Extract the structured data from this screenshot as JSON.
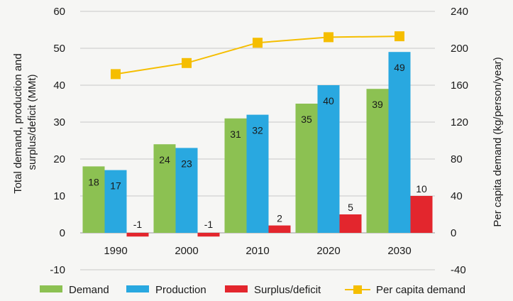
{
  "chart_data": {
    "type": "bar",
    "categories": [
      "1990",
      "2000",
      "2010",
      "2020",
      "2030"
    ],
    "series": [
      {
        "name": "Demand",
        "values": [
          18,
          24,
          31,
          35,
          39
        ],
        "color": "#8cc152",
        "kind": "bar",
        "axis": "left"
      },
      {
        "name": "Production",
        "values": [
          17,
          23,
          32,
          40,
          49
        ],
        "color": "#29a8e0",
        "kind": "bar",
        "axis": "left"
      },
      {
        "name": "Surplus/deficit",
        "values": [
          -1,
          -1,
          2,
          5,
          10
        ],
        "color": "#e3262d",
        "kind": "bar",
        "axis": "left"
      },
      {
        "name": "Per capita demand",
        "values": [
          172,
          184,
          206,
          212,
          213
        ],
        "color": "#f5be00",
        "kind": "line",
        "axis": "right"
      }
    ],
    "bar_labels": [
      [
        "18",
        "24",
        "31",
        "35",
        "39"
      ],
      [
        "17",
        "23",
        "32",
        "40",
        "49"
      ],
      [
        "-1",
        "-1",
        "2",
        "5",
        "10"
      ]
    ],
    "ylabel_left_lines": [
      "Total demand, production and",
      "surplus/deficit (MMt)"
    ],
    "ylabel_right": "Per capita demand (kg/person/year)",
    "ylim_left": [
      -10,
      60
    ],
    "yticks_left": [
      "-10",
      "0",
      "10",
      "20",
      "30",
      "40",
      "50",
      "60"
    ],
    "ylim_right": [
      -40,
      240
    ],
    "yticks_right": [
      "-40",
      "0",
      "40",
      "80",
      "120",
      "160",
      "200",
      "240"
    ],
    "grid": true,
    "legend_position": "bottom"
  }
}
